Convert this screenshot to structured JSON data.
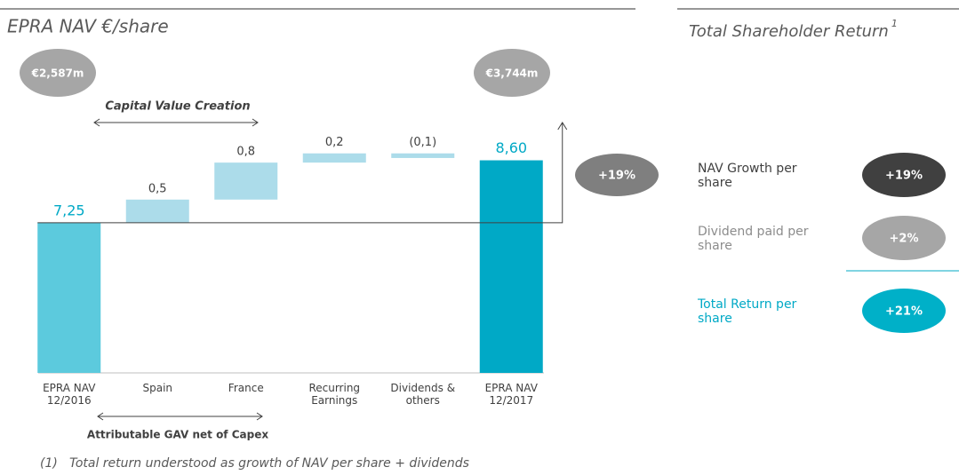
{
  "chart_data": {
    "type": "waterfall",
    "title": "EPRA NAV €/share",
    "categories": [
      "EPRA NAV\n12/2016",
      "Spain",
      "France",
      "Recurring\nEarnings",
      "Dividends &\nothers",
      "EPRA NAV\n12/2017"
    ],
    "values": [
      7.25,
      0.5,
      0.8,
      0.2,
      -0.1,
      8.6
    ],
    "value_labels": [
      "7,25",
      "0,5",
      "0,8",
      "0,2",
      "(0,1)",
      "8,60"
    ],
    "measures": [
      "absolute",
      "relative",
      "relative",
      "relative",
      "relative",
      "total"
    ],
    "colors": [
      "#5ccadd",
      "#acdcea",
      "#acdcea",
      "#acdcea",
      "#acdcea",
      "#00a9c6"
    ],
    "ylim": [
      4,
      11.3
    ],
    "annotations": {
      "start_bubble": "€2,587m",
      "end_bubble": "€3,744m",
      "capital_label": "Capital Value Creation",
      "gav_label": "Attributable GAV net of Capex",
      "growth_bubble": "+19%"
    }
  },
  "footnote": {
    "marker": "(1)",
    "text": "Total return understood as growth of NAV per share + dividends"
  },
  "side_panel": {
    "title": "Total Shareholder Return",
    "title_note": "1",
    "rows": [
      {
        "label": "NAV Growth per\nshare",
        "value": "+19%"
      },
      {
        "label": "Dividend paid per\nshare",
        "value": "+2%"
      },
      {
        "label": "Total Return per\nshare",
        "value": "+21%"
      }
    ]
  }
}
